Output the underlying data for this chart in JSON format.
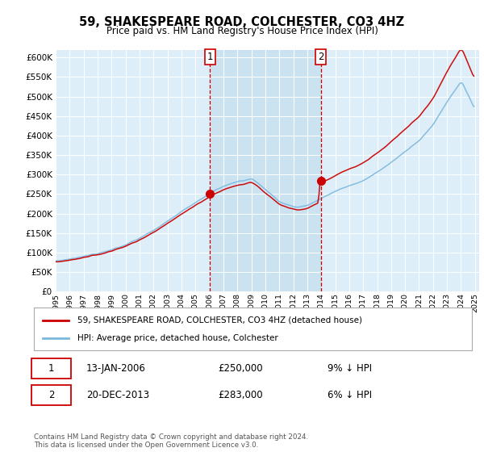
{
  "title": "59, SHAKESPEARE ROAD, COLCHESTER, CO3 4HZ",
  "subtitle": "Price paid vs. HM Land Registry's House Price Index (HPI)",
  "ylim": [
    0,
    620000
  ],
  "yticks": [
    0,
    50000,
    100000,
    150000,
    200000,
    250000,
    300000,
    350000,
    400000,
    450000,
    500000,
    550000,
    600000
  ],
  "plot_bg_color": "#ddeef8",
  "legend_label_red": "59, SHAKESPEARE ROAD, COLCHESTER, CO3 4HZ (detached house)",
  "legend_label_blue": "HPI: Average price, detached house, Colchester",
  "transaction1_date": "13-JAN-2006",
  "transaction1_price": 250000,
  "transaction1_hpi": "9% ↓ HPI",
  "transaction2_date": "20-DEC-2013",
  "transaction2_price": 283000,
  "transaction2_hpi": "6% ↓ HPI",
  "footnote": "Contains HM Land Registry data © Crown copyright and database right 2024.\nThis data is licensed under the Open Government Licence v3.0.",
  "red_color": "#cc0000",
  "blue_color": "#7ab8dd",
  "annotation_color": "#cc0000",
  "shade_color": "#c8e0f0",
  "year_start": 1995,
  "year_end": 2025,
  "transaction1_year": 2006.036,
  "transaction2_year": 2013.963
}
